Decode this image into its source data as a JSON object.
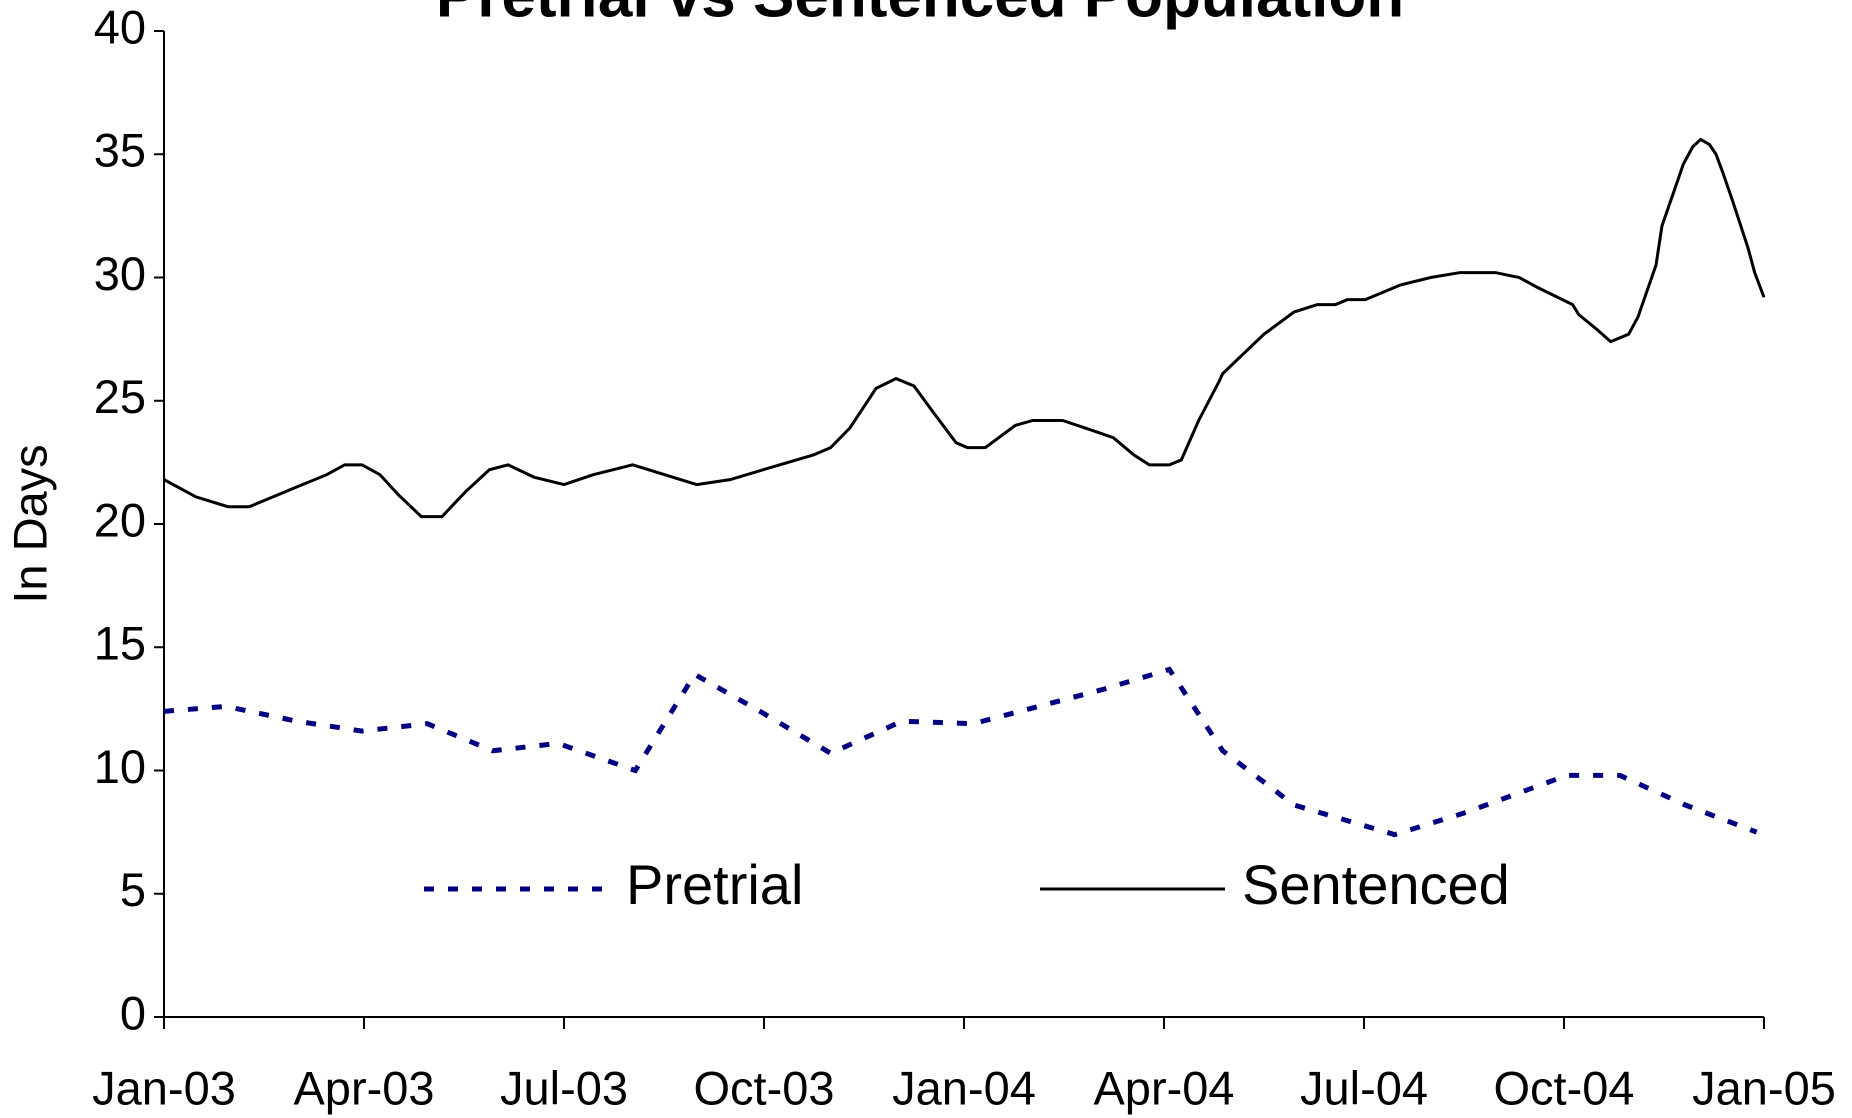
{
  "chart_data": {
    "type": "line",
    "title": "Pretrial vs Sentenced Population",
    "ylabel": "In Days",
    "xlim": [
      0,
      24
    ],
    "xticks": [
      {
        "value": 0,
        "label": "Jan-03"
      },
      {
        "value": 3,
        "label": "Apr-03"
      },
      {
        "value": 6,
        "label": "Jul-03"
      },
      {
        "value": 9,
        "label": "Oct-03"
      },
      {
        "value": 12,
        "label": "Jan-04"
      },
      {
        "value": 15,
        "label": "Apr-04"
      },
      {
        "value": 18,
        "label": "Jul-04"
      },
      {
        "value": 21,
        "label": "Oct-04"
      },
      {
        "value": 24,
        "label": "Jan-05"
      }
    ],
    "ylim": [
      0,
      40
    ],
    "yticks": [
      0,
      5,
      10,
      15,
      20,
      25,
      30,
      35,
      40
    ],
    "grid": false,
    "legend": "inside-bottom",
    "series": [
      {
        "name": "Pretrial",
        "color": "#000080",
        "dash": "dotted",
        "x": [
          0,
          0.93,
          1.99,
          2.97,
          3.95,
          4.93,
          5.91,
          7.07,
          7.96,
          8.94,
          10.0,
          11.07,
          12.14,
          13.12,
          14.1,
          15.08,
          15.88,
          16.95,
          18.46,
          19.53,
          21.04,
          21.84,
          22.82,
          23.89
        ],
        "values": [
          12.4,
          12.6,
          12.0,
          11.6,
          11.9,
          10.8,
          11.1,
          10.0,
          13.9,
          12.4,
          10.7,
          12.0,
          11.9,
          12.6,
          13.3,
          14.1,
          10.8,
          8.6,
          7.4,
          8.3,
          9.8,
          9.8,
          8.6,
          7.5
        ]
      },
      {
        "name": "Sentenced",
        "color": "#000000",
        "dash": "solid",
        "x": [
          0,
          0.48,
          0.96,
          1.28,
          1.99,
          2.44,
          2.71,
          2.97,
          3.24,
          3.51,
          3.86,
          4.17,
          4.52,
          4.88,
          5.16,
          5.55,
          6.0,
          6.44,
          7.03,
          7.51,
          7.99,
          8.49,
          9.11,
          9.74,
          10.0,
          10.29,
          10.68,
          10.98,
          11.25,
          11.52,
          11.88,
          12.05,
          12.32,
          12.77,
          13.03,
          13.48,
          13.92,
          14.24,
          14.55,
          14.78,
          15.08,
          15.26,
          15.52,
          15.83,
          15.88,
          16.5,
          16.95,
          17.3,
          17.57,
          17.75,
          18.02,
          18.55,
          19.0,
          19.44,
          19.97,
          20.33,
          20.6,
          21.13,
          21.22,
          21.49,
          21.7,
          21.97,
          22.11,
          22.38,
          22.47,
          22.65,
          22.79,
          22.93,
          23.05,
          23.18,
          23.28,
          23.39,
          23.53,
          23.76,
          23.86,
          24.0
        ],
        "values": [
          21.8,
          21.1,
          20.7,
          20.7,
          21.5,
          22.0,
          22.4,
          22.4,
          22.0,
          21.2,
          20.3,
          20.3,
          21.3,
          22.2,
          22.4,
          21.9,
          21.6,
          22.0,
          22.4,
          22.0,
          21.6,
          21.8,
          22.3,
          22.8,
          23.1,
          23.9,
          25.5,
          25.9,
          25.6,
          24.6,
          23.3,
          23.1,
          23.1,
          24.0,
          24.2,
          24.2,
          23.8,
          23.5,
          22.8,
          22.4,
          22.4,
          22.6,
          24.2,
          25.8,
          26.1,
          27.7,
          28.6,
          28.9,
          28.9,
          29.1,
          29.1,
          29.7,
          30.0,
          30.2,
          30.2,
          30.0,
          29.6,
          28.9,
          28.5,
          27.9,
          27.4,
          27.7,
          28.4,
          30.5,
          32.1,
          33.5,
          34.6,
          35.3,
          35.6,
          35.4,
          35.0,
          34.2,
          33.1,
          31.2,
          30.2,
          29.2
        ]
      }
    ]
  }
}
